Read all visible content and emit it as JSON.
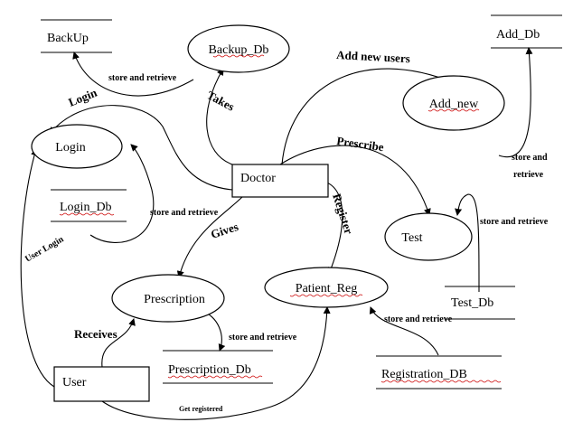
{
  "entities": {
    "doctor": "Doctor",
    "user": "User"
  },
  "processes": {
    "login": "Login",
    "add_new": "Add_new",
    "test": "Test",
    "prescription": "Prescription",
    "patient_reg": "Patient_Reg"
  },
  "stores": {
    "backup": "BackUp",
    "backup_db": "Backup_Db",
    "add_db": "Add_Db",
    "login_db": "Login_Db",
    "test_db": "Test_Db",
    "prescription_db": "Prescription_Db",
    "registration_db": "Registration_DB"
  },
  "flows": {
    "store_retrieve": "store and retrieve",
    "store_retrieve_line1": "store and",
    "store_retrieve_line2": "retrieve",
    "add_new_users": "Add new users",
    "login": "Login",
    "takes": "Takes",
    "prescribe": "Prescribe",
    "register": "Register",
    "gives": "Gives",
    "user_login": "User Login",
    "receives": "Receives",
    "get_registered": "Get registered"
  }
}
